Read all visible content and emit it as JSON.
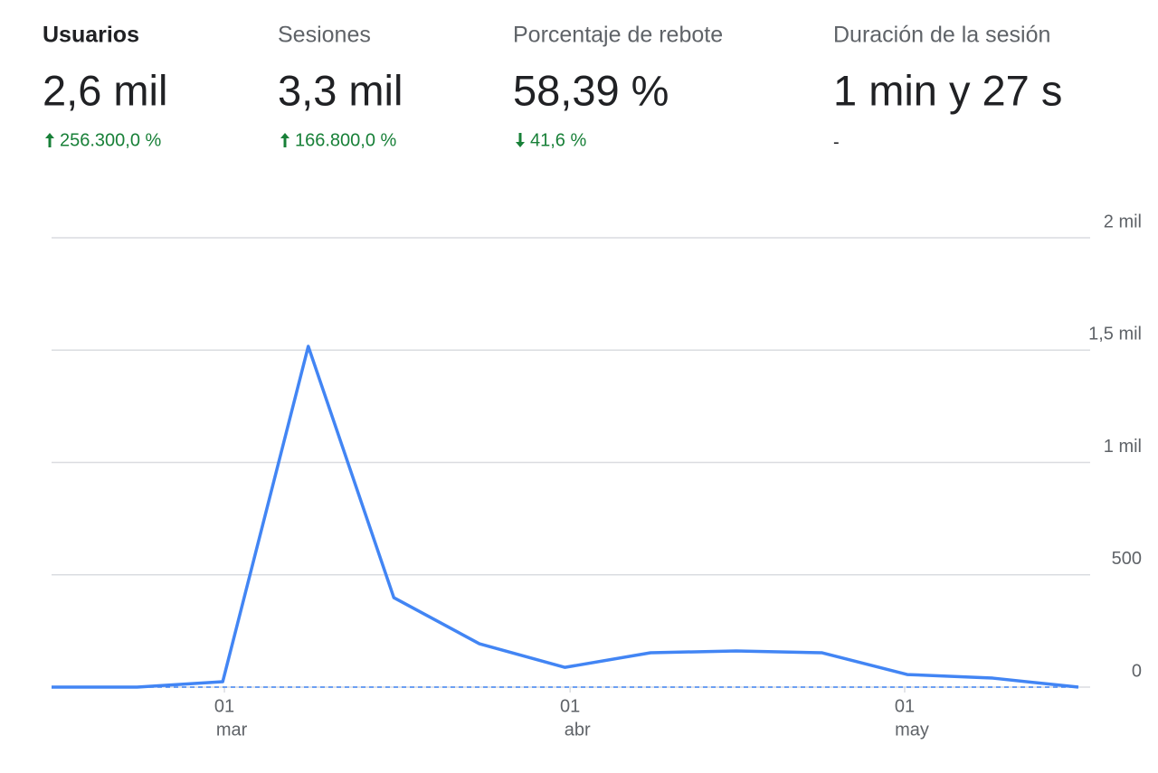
{
  "metrics": [
    {
      "label": "Usuarios",
      "value": "2,6 mil",
      "change": "256.300,0 %",
      "direction": "up"
    },
    {
      "label": "Sesiones",
      "value": "3,3 mil",
      "change": "166.800,0 %",
      "direction": "up"
    },
    {
      "label": "Porcentaje de rebote",
      "value": "58,39 %",
      "change": "41,6 %",
      "direction": "down"
    },
    {
      "label": "Duración de la sesión",
      "value": "1 min y 27 s",
      "change": "-"
    }
  ],
  "chart_data": {
    "type": "line",
    "x": [
      0,
      1,
      2,
      3,
      4,
      5,
      6,
      7,
      8,
      9,
      10,
      11,
      12
    ],
    "xlim": [
      0,
      12
    ],
    "xticks": [
      {
        "value": 2.02,
        "label": [
          "01",
          "mar"
        ]
      },
      {
        "value": 6.06,
        "label": [
          "01",
          "abr"
        ]
      },
      {
        "value": 9.97,
        "label": [
          "01",
          "may"
        ]
      }
    ],
    "series": [
      {
        "color": "#4285f4",
        "dashed": false,
        "values": [
          0,
          0,
          24,
          1517,
          398,
          193,
          88,
          153,
          161,
          153,
          56,
          40,
          0
        ]
      },
      {
        "color": "#4285f4",
        "dashed": true,
        "values": [
          0,
          0,
          0,
          0,
          0,
          0,
          0,
          0,
          0,
          0,
          0,
          0,
          0
        ]
      }
    ],
    "ylim": [
      0,
      2000
    ],
    "yticks": [
      0,
      500,
      {
        "value": 1000,
        "label": "1 mil"
      },
      {
        "value": 1500,
        "label": "1,5 mil"
      },
      {
        "value": 2000,
        "label": "2 mil"
      }
    ],
    "grid": true,
    "y_axis_side": "right",
    "change_color": "#188038"
  }
}
